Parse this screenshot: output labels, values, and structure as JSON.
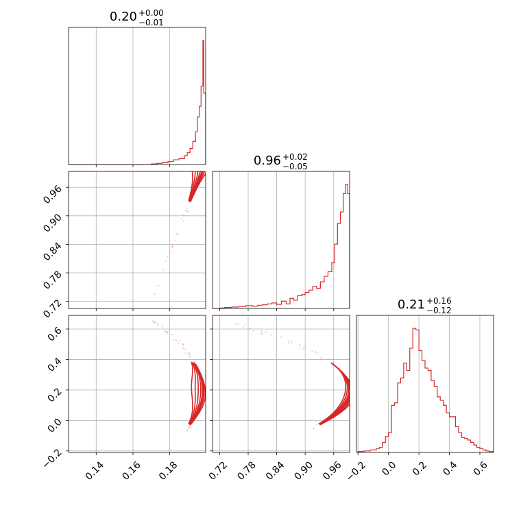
{
  "colors": {
    "accent": "#d62728",
    "grid": "#b0b0b0",
    "frame": "#000000",
    "scatter": "#ef9a9a"
  },
  "params": {
    "p0": {
      "ticks": [
        "0.14",
        "0.16",
        "0.18"
      ],
      "range": [
        0.125,
        0.1995
      ]
    },
    "p1": {
      "ticks": [
        "0.72",
        "0.78",
        "0.84",
        "0.90",
        "0.96"
      ],
      "range": [
        0.705,
        0.9935
      ]
    },
    "p2": {
      "ticks": [
        "−0.2",
        "0.0",
        "0.2",
        "0.4",
        "0.6"
      ],
      "range": [
        -0.21,
        0.69
      ]
    }
  },
  "titles": [
    {
      "value": "0.20",
      "upper": "+0.00",
      "lower": "−0.01"
    },
    {
      "value": "0.96",
      "upper": "+0.02",
      "lower": "−0.05"
    },
    {
      "value": "0.21",
      "upper": "+0.16",
      "lower": "−0.12"
    }
  ],
  "chart_data": {
    "type": "corner",
    "contours": "nested density contours along a curved degeneracy",
    "histograms": [
      {
        "param": "p0",
        "bin_edges": [
          0.17,
          0.173,
          0.176,
          0.179,
          0.182,
          0.185,
          0.188,
          0.1895,
          0.191,
          0.1925,
          0.194,
          0.195,
          0.196,
          0.197,
          0.198,
          0.1985,
          0.1995
        ],
        "counts": [
          1,
          2,
          3,
          5,
          8,
          10,
          15,
          20,
          27,
          39,
          55,
          80,
          98,
          132,
          209,
          120
        ]
      },
      {
        "param": "p1",
        "bin_edges": [
          0.72,
          0.73,
          0.745,
          0.76,
          0.775,
          0.79,
          0.8,
          0.81,
          0.82,
          0.83,
          0.84,
          0.85,
          0.86,
          0.868,
          0.876,
          0.884,
          0.892,
          0.9,
          0.908,
          0.916,
          0.924,
          0.932,
          0.94,
          0.948,
          0.956,
          0.962,
          0.968,
          0.974,
          0.98,
          0.985,
          0.9895,
          0.9935
        ],
        "counts": [
          1,
          2,
          3,
          4,
          6,
          5,
          7,
          8,
          10,
          12,
          9,
          16,
          10,
          22,
          18,
          28,
          30,
          35,
          40,
          48,
          44,
          58,
          70,
          80,
          100,
          140,
          185,
          210,
          250,
          270,
          250
        ]
      },
      {
        "param": "p2",
        "bin_edges": [
          -0.2,
          -0.16,
          -0.12,
          -0.08,
          -0.06,
          -0.04,
          -0.02,
          0.0,
          0.02,
          0.04,
          0.06,
          0.08,
          0.1,
          0.12,
          0.14,
          0.16,
          0.18,
          0.2,
          0.22,
          0.24,
          0.26,
          0.28,
          0.3,
          0.32,
          0.34,
          0.36,
          0.38,
          0.4,
          0.42,
          0.44,
          0.46,
          0.48,
          0.5,
          0.52,
          0.54,
          0.56,
          0.58,
          0.6,
          0.62,
          0.64,
          0.66,
          0.69
        ],
        "counts": [
          2,
          3,
          5,
          8,
          10,
          20,
          32,
          40,
          95,
          100,
          140,
          150,
          180,
          165,
          210,
          250,
          247,
          205,
          185,
          170,
          165,
          145,
          133,
          112,
          105,
          95,
          80,
          72,
          72,
          52,
          40,
          30,
          28,
          25,
          20,
          15,
          10,
          8,
          5,
          3,
          2
        ]
      }
    ]
  }
}
